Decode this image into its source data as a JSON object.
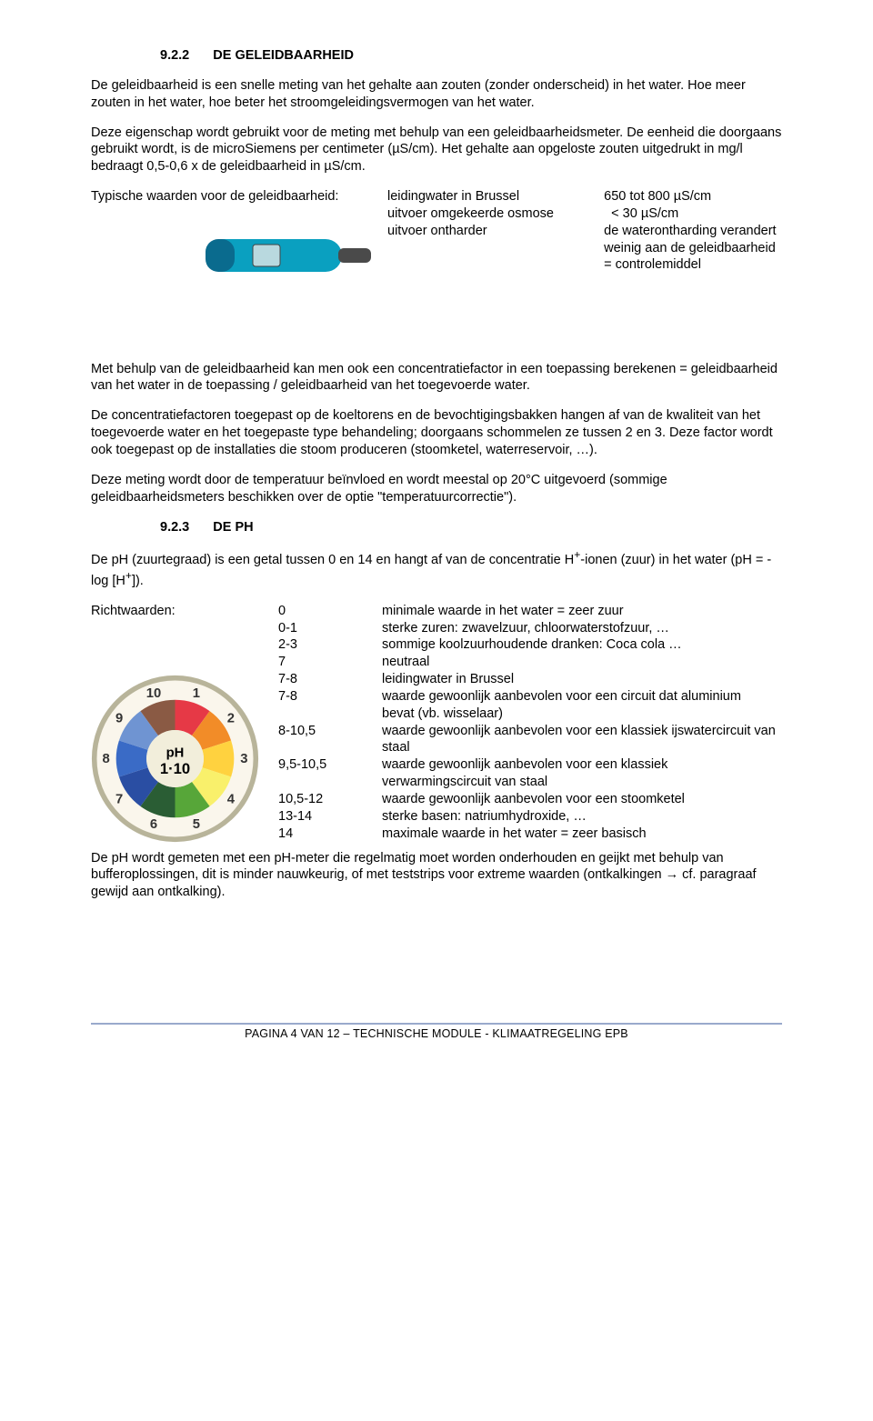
{
  "section1": {
    "num": "9.2.2",
    "title": "DE GELEIDBAARHEID",
    "p1": "De geleidbaarheid is een snelle meting van het gehalte aan zouten (zonder onderscheid) in het water. Hoe meer zouten in het water, hoe beter het stroomgeleidingsvermogen van het water.",
    "p2": "Deze eigenschap wordt gebruikt voor de meting met behulp van een geleidbaarheidsmeter. De eenheid die doorgaans gebruikt wordt, is de microSiemens per centimeter (µS/cm). Het gehalte aan opgeloste zouten uitgedrukt in mg/l bedraagt 0,5-0,6 x de geleidbaarheid in µS/cm.",
    "row1_label": "Typische waarden voor de geleidbaarheid:",
    "row1_c2a": "leidingwater in  Brussel",
    "row1_c3a": "650 tot 800 µS/cm",
    "row1_c2b": "uitvoer omgekeerde osmose",
    "row1_c3b": "  < 30 µS/cm",
    "row2_c2": "uitvoer ontharder",
    "row2_c3": "de waterontharding verandert weinig aan de geleidbaarheid = controlemiddel",
    "p3": "Met behulp van de geleidbaarheid kan men ook een concentratiefactor in een toepassing berekenen = geleidbaarheid van het water in de toepassing / geleidbaarheid van het toegevoerde water.",
    "p4": "De concentratiefactoren toegepast op de koeltorens en de bevochtigingsbakken hangen af van de kwaliteit van het toegevoerde water en het toegepaste type behandeling; doorgaans schommelen ze tussen 2 en 3. Deze factor wordt ook toegepast op de installaties die stoom produceren (stoomketel, waterreservoir, …).",
    "p5": "Deze meting wordt door de temperatuur beïnvloed en wordt meestal op 20°C uitgevoerd (sommige geleidbaarheidsmeters beschikken over de optie \"temperatuurcorrectie\")."
  },
  "section2": {
    "num": "9.2.3",
    "title": "DE PH",
    "intro_a": "De pH (zuurtegraad) is een getal tussen 0 en 14 en hangt af van de concentratie H",
    "intro_sup1": "+",
    "intro_b": "-ionen (zuur) in het water (pH = - log [H",
    "intro_sup2": "+",
    "intro_c": "]).",
    "richtwaarden_label": "Richtwaarden:",
    "rows": [
      {
        "v": "0",
        "d": "minimale waarde in het water = zeer zuur"
      },
      {
        "v": "0-1",
        "d": "sterke zuren: zwavelzuur, chloorwaterstofzuur, …"
      },
      {
        "v": "2-3",
        "d": "sommige koolzuurhoudende dranken: Coca cola …"
      },
      {
        "v": "7",
        "d": "neutraal"
      },
      {
        "v": "7-8",
        "d": "leidingwater in Brussel"
      },
      {
        "v": "7-8",
        "d": "waarde gewoonlijk aanbevolen voor een circuit dat aluminium bevat (vb. wisselaar)"
      },
      {
        "v": "8-10,5",
        "d": "waarde gewoonlijk aanbevolen voor een klassiek ijswatercircuit van staal"
      },
      {
        "v": "9,5-10,5",
        "d": "waarde gewoonlijk aanbevolen voor een klassiek verwarmingscircuit van staal"
      },
      {
        "v": "10,5-12",
        "d": "waarde gewoonlijk aanbevolen voor een stoomketel"
      },
      {
        "v": "13-14",
        "d": "sterke basen: natriumhydroxide, …"
      },
      {
        "v": "14",
        "d": "maximale waarde in het water = zeer basisch"
      }
    ],
    "outro": "De pH wordt gemeten met een pH-meter die regelmatig moet worden onderhouden en geijkt met behulp van bufferoplossingen, dit is minder nauwkeurig, of met teststrips voor extreme waarden (ontkalkingen → cf. paragraaf gewijd aan ontkalking)."
  },
  "ph_dial": {
    "bg": "#faf6ec",
    "ring": "#b8b49a",
    "center_text1": "pH",
    "center_text2": "1·10",
    "wedges": [
      {
        "c": "#e63946",
        "a": 0
      },
      {
        "c": "#f28c28",
        "a": 36
      },
      {
        "c": "#ffd23f",
        "a": 72
      },
      {
        "c": "#f9f06b",
        "a": 108
      },
      {
        "c": "#57a639",
        "a": 144
      },
      {
        "c": "#2a5d34",
        "a": 180
      },
      {
        "c": "#2a4ea3",
        "a": 216
      },
      {
        "c": "#3a6bc6",
        "a": 252
      },
      {
        "c": "#6f94d2",
        "a": 288
      },
      {
        "c": "#8a5a44",
        "a": 324
      }
    ],
    "numbers": [
      "1",
      "2",
      "3",
      "4",
      "5",
      "6",
      "7",
      "8",
      "9",
      "10"
    ]
  },
  "footer": "PAGINA 4 VAN 12  – TECHNISCHE MODULE - KLIMAATREGELING EPB"
}
